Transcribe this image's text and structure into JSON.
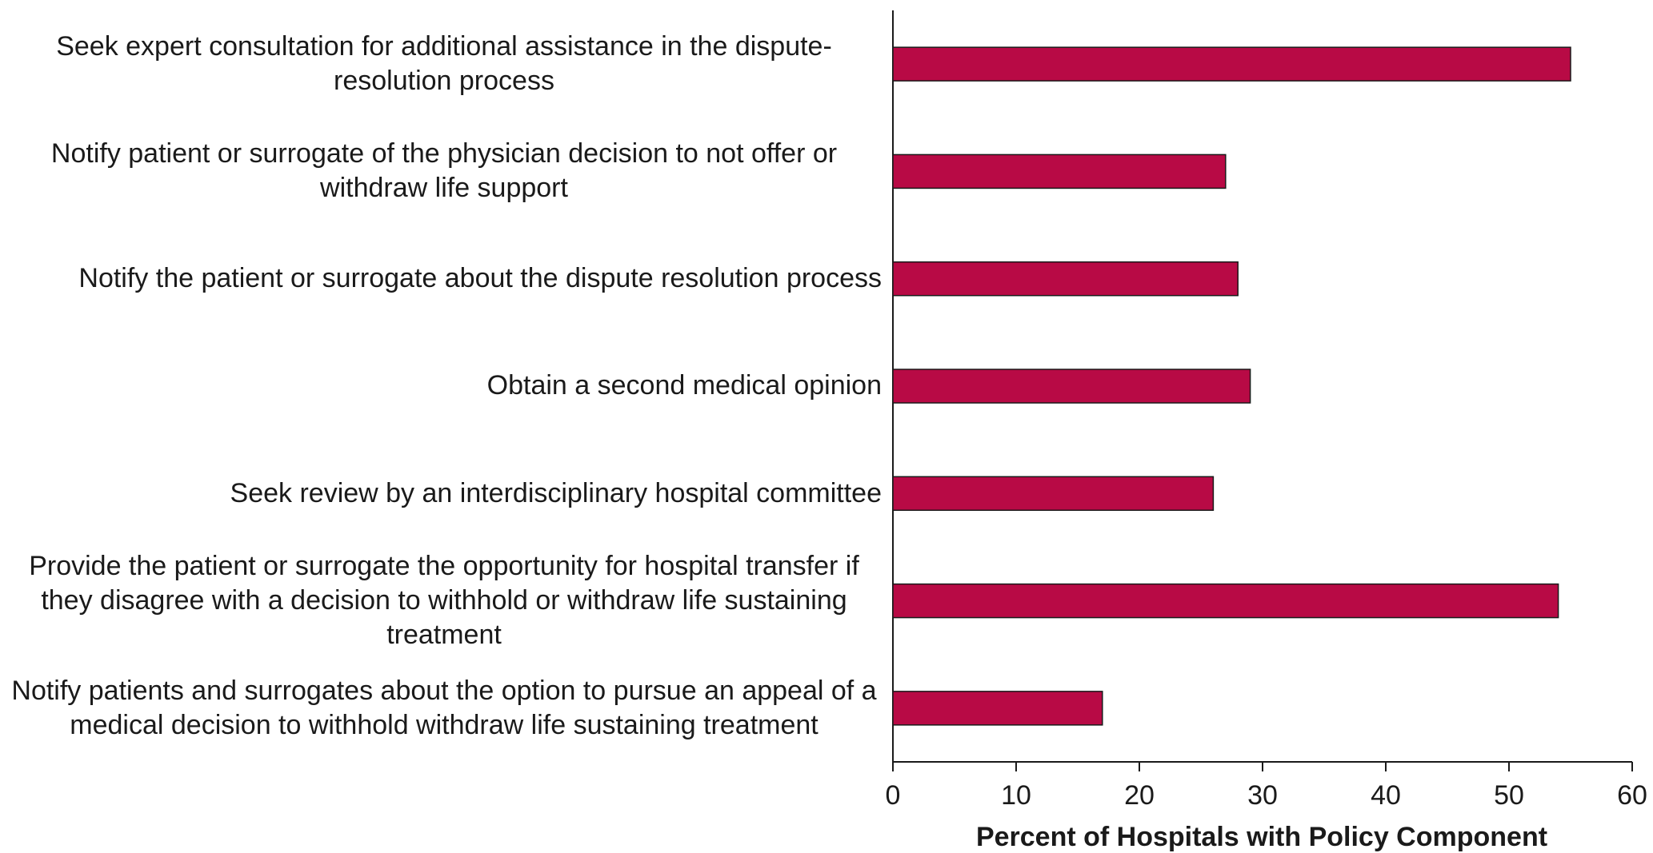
{
  "chart_data": {
    "type": "bar",
    "orientation": "horizontal",
    "categories": [
      "Seek expert consultation for additional assistance in the dispute-resolution process",
      "Notify patient or surrogate of the physician decision to not offer or withdraw life support",
      "Notify the patient or surrogate about the dispute resolution process",
      "Obtain a second medical opinion",
      "Seek review by an interdisciplinary hospital committee",
      "Provide the patient or surrogate the opportunity for hospital transfer if they disagree with a decision to withhold or withdraw life sustaining treatment",
      "Notify patients and surrogates about the option to pursue an appeal of a medical decision to withhold withdraw life sustaining treatment"
    ],
    "values": [
      55,
      27,
      28,
      29,
      26,
      54,
      17
    ],
    "color": "#b80a45",
    "xlabel": "Percent of Hospitals with Policy Component",
    "xlim": [
      0,
      60
    ],
    "xticks": [
      0,
      10,
      20,
      30,
      40,
      50,
      60
    ],
    "grid": false
  }
}
